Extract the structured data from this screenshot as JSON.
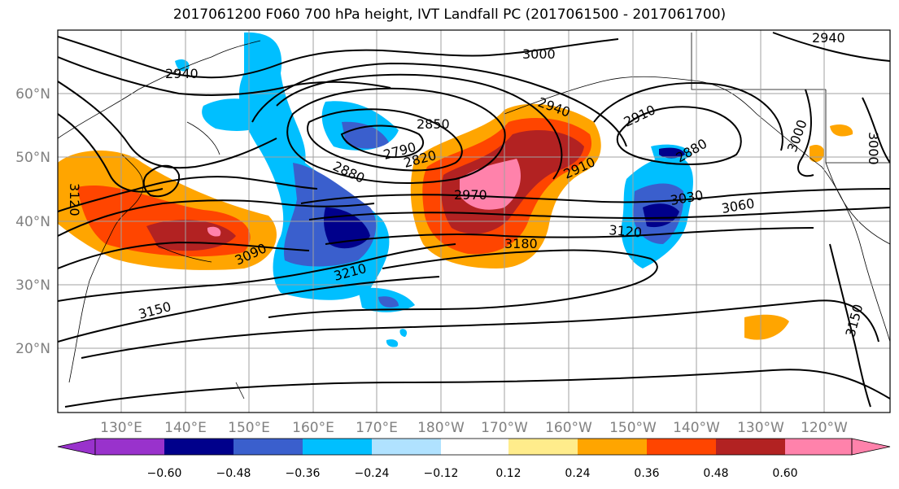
{
  "title": "2017061200 F060 700 hPa height, IVT Landfall PC (2017061500 - 2017061700)",
  "lat_labels": [
    "60°N",
    "50°N",
    "40°N",
    "30°N",
    "20°N"
  ],
  "lon_labels": [
    "130°E",
    "140°E",
    "150°E",
    "160°E",
    "170°E",
    "180°W",
    "170°W",
    "160°W",
    "150°W",
    "140°W",
    "130°W",
    "120°W"
  ],
  "contour_labels": [
    "2940",
    "3000",
    "2940",
    "2940",
    "2850",
    "2790",
    "2820",
    "2880",
    "2910",
    "2910",
    "2880",
    "3000",
    "3000",
    "2970",
    "3030",
    "3060",
    "3120",
    "3180",
    "3090",
    "3210",
    "3150",
    "3150",
    "3120"
  ],
  "colorbar": {
    "ticks": [
      "−0.60",
      "−0.48",
      "−0.36",
      "−0.24",
      "−0.12",
      "0.12",
      "0.24",
      "0.36",
      "0.48",
      "0.60"
    ],
    "colors": [
      "#9932CC",
      "#00008B",
      "#3A5FCD",
      "#00BFFF",
      "#B0E2FF",
      "#FFFFFF",
      "#FFEC8B",
      "#FFA500",
      "#FF4500",
      "#B22222",
      "#FF82AB"
    ]
  }
}
